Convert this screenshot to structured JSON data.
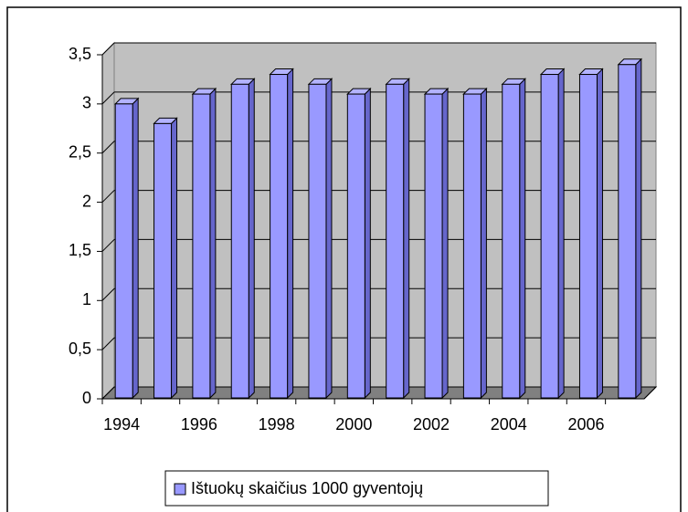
{
  "chart_data": {
    "type": "bar3d",
    "categories": [
      "1994",
      null,
      "1996",
      null,
      "1998",
      null,
      "2000",
      null,
      "2002",
      null,
      "2004",
      null,
      "2006",
      null
    ],
    "series": [
      {
        "name": "Ištuokų skaičius 1000 gyventojų",
        "color": "#9999ff",
        "values": [
          3.0,
          2.8,
          3.1,
          3.2,
          3.3,
          3.2,
          3.1,
          3.2,
          3.1,
          3.1,
          3.2,
          3.3,
          3.3,
          3.4
        ]
      }
    ],
    "ylim": [
      0,
      3.5
    ],
    "yticks": [
      0,
      {
        "value": 0.5,
        "label": "0,5"
      },
      1,
      {
        "value": 1.5,
        "label": "1,5"
      },
      2,
      {
        "value": 2.5,
        "label": "2,5"
      },
      3,
      {
        "value": 3.5,
        "label": "3,5"
      }
    ],
    "grid": true,
    "legend": "bottom"
  }
}
